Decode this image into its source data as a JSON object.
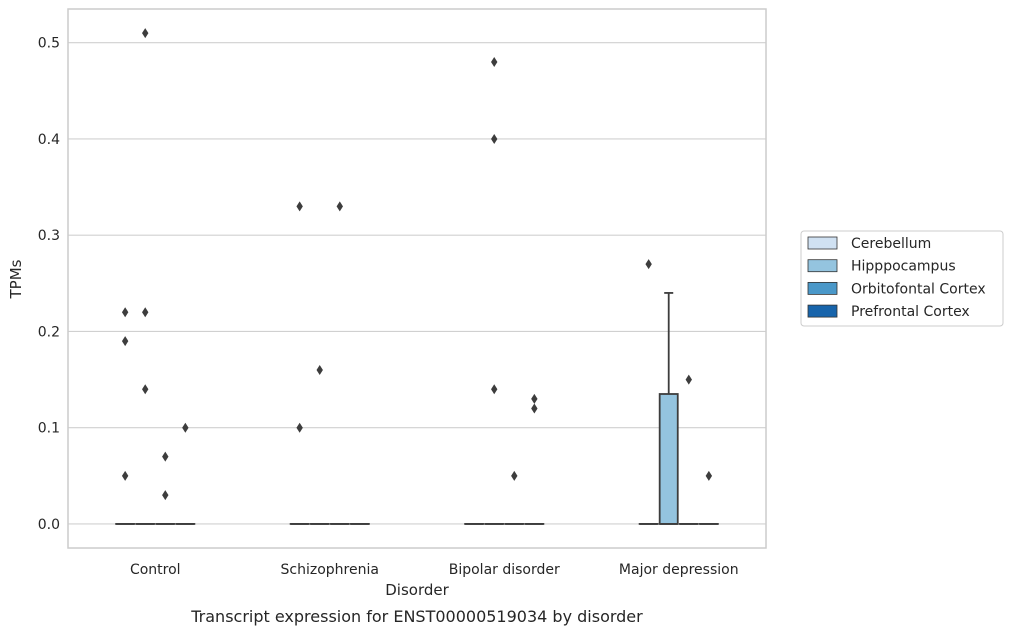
{
  "chart_data": {
    "type": "box",
    "caption": "Transcript expression for ENST00000519034 by disorder",
    "xlabel": "Disorder",
    "ylabel": "TPMs",
    "ylim": [
      -0.025,
      0.535
    ],
    "yticks": [
      0.0,
      0.1,
      0.2,
      0.3,
      0.4,
      0.5
    ],
    "ytick_labels": [
      "0.0",
      "0.1",
      "0.2",
      "0.3",
      "0.4",
      "0.5"
    ],
    "grid": true,
    "legend_position": "right",
    "categories": [
      "Control",
      "Schizophrenia",
      "Bipolar disorder",
      "Major depression"
    ],
    "series": [
      {
        "name": "Cerebellum",
        "color": "#d0e1f2"
      },
      {
        "name": "Hipppocampus",
        "color": "#94c4df"
      },
      {
        "name": "Orbitofontal Cortex",
        "color": "#4a98c9"
      },
      {
        "name": "Prefrontal Cortex",
        "color": "#1764ab"
      }
    ],
    "boxes": [
      {
        "category": "Control",
        "series": "Cerebellum",
        "q1": 0,
        "median": 0,
        "q3": 0,
        "whisker_low": 0,
        "whisker_high": 0
      },
      {
        "category": "Control",
        "series": "Hipppocampus",
        "q1": 0,
        "median": 0,
        "q3": 0,
        "whisker_low": 0,
        "whisker_high": 0
      },
      {
        "category": "Control",
        "series": "Orbitofontal Cortex",
        "q1": 0,
        "median": 0,
        "q3": 0,
        "whisker_low": 0,
        "whisker_high": 0
      },
      {
        "category": "Control",
        "series": "Prefrontal Cortex",
        "q1": 0,
        "median": 0,
        "q3": 0,
        "whisker_low": 0,
        "whisker_high": 0
      },
      {
        "category": "Schizophrenia",
        "series": "Cerebellum",
        "q1": 0,
        "median": 0,
        "q3": 0,
        "whisker_low": 0,
        "whisker_high": 0
      },
      {
        "category": "Schizophrenia",
        "series": "Hipppocampus",
        "q1": 0,
        "median": 0,
        "q3": 0,
        "whisker_low": 0,
        "whisker_high": 0
      },
      {
        "category": "Schizophrenia",
        "series": "Orbitofontal Cortex",
        "q1": 0,
        "median": 0,
        "q3": 0,
        "whisker_low": 0,
        "whisker_high": 0
      },
      {
        "category": "Schizophrenia",
        "series": "Prefrontal Cortex",
        "q1": 0,
        "median": 0,
        "q3": 0,
        "whisker_low": 0,
        "whisker_high": 0
      },
      {
        "category": "Bipolar disorder",
        "series": "Cerebellum",
        "q1": 0,
        "median": 0,
        "q3": 0,
        "whisker_low": 0,
        "whisker_high": 0
      },
      {
        "category": "Bipolar disorder",
        "series": "Hipppocampus",
        "q1": 0,
        "median": 0,
        "q3": 0,
        "whisker_low": 0,
        "whisker_high": 0
      },
      {
        "category": "Bipolar disorder",
        "series": "Orbitofontal Cortex",
        "q1": 0,
        "median": 0,
        "q3": 0,
        "whisker_low": 0,
        "whisker_high": 0
      },
      {
        "category": "Bipolar disorder",
        "series": "Prefrontal Cortex",
        "q1": 0,
        "median": 0,
        "q3": 0,
        "whisker_low": 0,
        "whisker_high": 0
      },
      {
        "category": "Major depression",
        "series": "Cerebellum",
        "q1": 0,
        "median": 0,
        "q3": 0,
        "whisker_low": 0,
        "whisker_high": 0
      },
      {
        "category": "Major depression",
        "series": "Hipppocampus",
        "q1": 0,
        "median": 0,
        "q3": 0.135,
        "whisker_low": 0,
        "whisker_high": 0.24
      },
      {
        "category": "Major depression",
        "series": "Orbitofontal Cortex",
        "q1": 0,
        "median": 0,
        "q3": 0,
        "whisker_low": 0,
        "whisker_high": 0
      },
      {
        "category": "Major depression",
        "series": "Prefrontal Cortex",
        "q1": 0,
        "median": 0,
        "q3": 0,
        "whisker_low": 0,
        "whisker_high": 0
      }
    ],
    "outliers": [
      {
        "category": "Control",
        "series": "Cerebellum",
        "values": [
          0.22,
          0.19,
          0.05
        ]
      },
      {
        "category": "Control",
        "series": "Hipppocampus",
        "values": [
          0.51,
          0.22,
          0.14
        ]
      },
      {
        "category": "Control",
        "series": "Orbitofontal Cortex",
        "values": [
          0.07,
          0.03
        ]
      },
      {
        "category": "Control",
        "series": "Prefrontal Cortex",
        "values": [
          0.1
        ]
      },
      {
        "category": "Schizophrenia",
        "series": "Cerebellum",
        "values": [
          0.33,
          0.1
        ]
      },
      {
        "category": "Schizophrenia",
        "series": "Hipppocampus",
        "values": [
          0.16
        ]
      },
      {
        "category": "Schizophrenia",
        "series": "Orbitofontal Cortex",
        "values": [
          0.33
        ]
      },
      {
        "category": "Bipolar disorder",
        "series": "Hipppocampus",
        "values": [
          0.48,
          0.4,
          0.14
        ]
      },
      {
        "category": "Bipolar disorder",
        "series": "Orbitofontal Cortex",
        "values": [
          0.05
        ]
      },
      {
        "category": "Bipolar disorder",
        "series": "Prefrontal Cortex",
        "values": [
          0.13,
          0.12
        ]
      },
      {
        "category": "Major depression",
        "series": "Cerebellum",
        "values": [
          0.27
        ]
      },
      {
        "category": "Major depression",
        "series": "Orbitofontal Cortex",
        "values": [
          0.15
        ]
      },
      {
        "category": "Major depression",
        "series": "Prefrontal Cortex",
        "values": [
          0.05
        ]
      }
    ]
  },
  "colors": {
    "grid": "#d0d0d0",
    "spine": "#cccccc",
    "line": "#3d3d3d",
    "outlier": "#3d3d3d"
  }
}
